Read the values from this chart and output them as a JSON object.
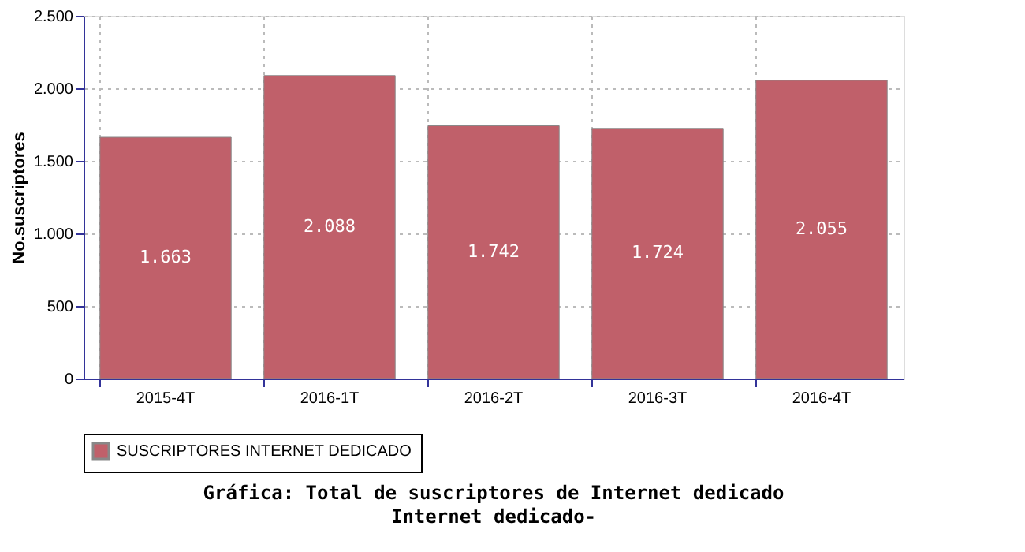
{
  "chart_data": {
    "type": "bar",
    "title": "Gráfica: Total de suscriptores de Internet dedicado",
    "subtitle": "Internet dedicado-",
    "ylabel": "No.suscriptores",
    "categories": [
      "2015-4T",
      "2016-1T",
      "2016-2T",
      "2016-3T",
      "2016-4T"
    ],
    "series": [
      {
        "name": "SUSCRIPTORES INTERNET DEDICADO",
        "color": "#c0606a",
        "values": [
          1663,
          2088,
          1742,
          1724,
          2055
        ],
        "value_labels": [
          "1.663",
          "2.088",
          "1.742",
          "1.724",
          "2.055"
        ]
      }
    ],
    "ylim": [
      0,
      2500
    ],
    "yticks": [
      0,
      {
        "value": 500,
        "label": "500"
      },
      {
        "value": 1000,
        "label": "1.000"
      },
      {
        "value": 1500,
        "label": "1.500"
      },
      {
        "value": 2000,
        "label": "2.000"
      },
      {
        "value": 2500,
        "label": "2.500"
      }
    ],
    "grid": true,
    "legend": "bottom"
  }
}
